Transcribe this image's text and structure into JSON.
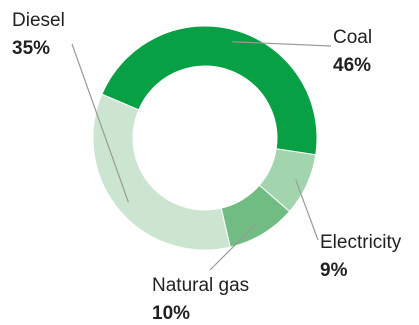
{
  "chart_data": {
    "type": "pie",
    "title": "",
    "donut": true,
    "legend": "none",
    "slices": [
      {
        "label": "Coal",
        "value": 46,
        "display": "46%",
        "color": "#08a045"
      },
      {
        "label": "Electricity",
        "value": 9,
        "display": "9%",
        "color": "#a2d4ad"
      },
      {
        "label": "Natural gas",
        "value": 10,
        "display": "10%",
        "color": "#70bc82"
      },
      {
        "label": "Diesel",
        "value": 35,
        "display": "35%",
        "color": "#cbe5d1"
      }
    ]
  }
}
